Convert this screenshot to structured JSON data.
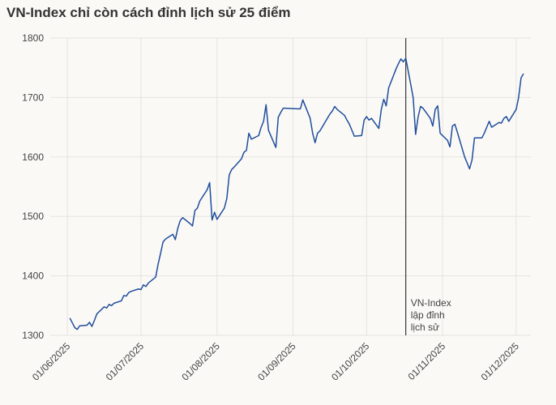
{
  "chart_data": {
    "type": "line",
    "title": "VN-Index chỉ còn cách đỉnh lịch sử 25 điểm",
    "x": [
      "2025-06-02",
      "2025-06-04",
      "2025-06-05",
      "2025-06-06",
      "2025-06-09",
      "2025-06-10",
      "2025-06-11",
      "2025-06-12",
      "2025-06-13",
      "2025-06-16",
      "2025-06-17",
      "2025-06-18",
      "2025-06-19",
      "2025-06-20",
      "2025-06-23",
      "2025-06-24",
      "2025-06-25",
      "2025-06-26",
      "2025-06-27",
      "2025-06-30",
      "2025-07-01",
      "2025-07-02",
      "2025-07-03",
      "2025-07-04",
      "2025-07-07",
      "2025-07-08",
      "2025-07-09",
      "2025-07-10",
      "2025-07-11",
      "2025-07-14",
      "2025-07-15",
      "2025-07-16",
      "2025-07-17",
      "2025-07-18",
      "2025-07-21",
      "2025-07-22",
      "2025-07-23",
      "2025-07-24",
      "2025-07-25",
      "2025-07-28",
      "2025-07-29",
      "2025-07-30",
      "2025-07-31",
      "2025-08-01",
      "2025-08-04",
      "2025-08-05",
      "2025-08-06",
      "2025-08-07",
      "2025-08-08",
      "2025-08-11",
      "2025-08-12",
      "2025-08-13",
      "2025-08-14",
      "2025-08-15",
      "2025-08-18",
      "2025-08-19",
      "2025-08-20",
      "2025-08-21",
      "2025-08-22",
      "2025-08-25",
      "2025-08-26",
      "2025-08-27",
      "2025-08-28",
      "2025-08-29",
      "2025-09-03",
      "2025-09-04",
      "2025-09-05",
      "2025-09-08",
      "2025-09-09",
      "2025-09-10",
      "2025-09-11",
      "2025-09-12",
      "2025-09-15",
      "2025-09-16",
      "2025-09-17",
      "2025-09-18",
      "2025-09-19",
      "2025-09-22",
      "2025-09-23",
      "2025-09-24",
      "2025-09-25",
      "2025-09-26",
      "2025-09-29",
      "2025-09-30",
      "2025-10-01",
      "2025-10-02",
      "2025-10-03",
      "2025-10-06",
      "2025-10-07",
      "2025-10-08",
      "2025-10-09",
      "2025-10-10",
      "2025-10-13",
      "2025-10-14",
      "2025-10-15",
      "2025-10-16",
      "2025-10-17",
      "2025-10-20",
      "2025-10-21",
      "2025-10-22",
      "2025-10-23",
      "2025-10-24",
      "2025-10-27",
      "2025-10-28",
      "2025-10-29",
      "2025-10-30",
      "2025-10-31",
      "2025-11-03",
      "2025-11-04",
      "2025-11-05",
      "2025-11-06",
      "2025-11-07",
      "2025-11-10",
      "2025-11-11",
      "2025-11-12",
      "2025-11-13",
      "2025-11-14",
      "2025-11-17",
      "2025-11-18",
      "2025-11-19",
      "2025-11-20",
      "2025-11-21",
      "2025-11-24",
      "2025-11-25",
      "2025-11-26",
      "2025-11-27",
      "2025-11-28",
      "2025-12-01",
      "2025-12-02",
      "2025-12-03",
      "2025-12-04"
    ],
    "series": [
      {
        "name": "VN-Index",
        "color": "#1f4e9c",
        "values": [
          1329,
          1313,
          1310,
          1316,
          1317,
          1322,
          1315,
          1325,
          1336,
          1348,
          1346,
          1352,
          1350,
          1354,
          1358,
          1367,
          1366,
          1372,
          1374,
          1378,
          1377,
          1385,
          1382,
          1388,
          1398,
          1420,
          1438,
          1457,
          1462,
          1470,
          1461,
          1480,
          1493,
          1498,
          1488,
          1484,
          1510,
          1514,
          1526,
          1545,
          1557,
          1494,
          1507,
          1495,
          1514,
          1530,
          1570,
          1579,
          1583,
          1597,
          1608,
          1611,
          1640,
          1630,
          1636,
          1650,
          1660,
          1688,
          1645,
          1616,
          1667,
          1675,
          1682,
          1682,
          1681,
          1681,
          1696,
          1665,
          1640,
          1624,
          1640,
          1644,
          1665,
          1672,
          1677,
          1685,
          1680,
          1670,
          1662,
          1655,
          1645,
          1635,
          1636,
          1662,
          1668,
          1662,
          1665,
          1648,
          1680,
          1697,
          1686,
          1716,
          1748,
          1757,
          1765,
          1760,
          1766,
          1700,
          1638,
          1667,
          1685,
          1682,
          1665,
          1652,
          1680,
          1686,
          1640,
          1628,
          1617,
          1652,
          1655,
          1642,
          1600,
          1590,
          1580,
          1595,
          1632,
          1632,
          1640,
          1650,
          1660,
          1650,
          1658,
          1657,
          1665,
          1668,
          1660,
          1680,
          1700,
          1733,
          1740
        ]
      }
    ],
    "xlim": [
      "2025-05-25",
      "2025-12-07"
    ],
    "xticks": [
      {
        "value": "2025-06-01",
        "label": "01/06/2025"
      },
      {
        "value": "2025-07-01",
        "label": "01/07/2025"
      },
      {
        "value": "2025-08-01",
        "label": "01/08/2025"
      },
      {
        "value": "2025-09-01",
        "label": "01/09/2025"
      },
      {
        "value": "2025-10-01",
        "label": "01/10/2025"
      },
      {
        "value": "2025-11-01",
        "label": "01/11/2025"
      },
      {
        "value": "2025-12-01",
        "label": "01/12/2025"
      }
    ],
    "ylim": [
      1300,
      1800
    ],
    "yticks": [
      1300,
      1400,
      1500,
      1600,
      1700,
      1800
    ],
    "grid": true,
    "annotation": {
      "x": "2025-10-17",
      "text": [
        "VN-Index",
        "lập đỉnh",
        "lịch sử"
      ]
    }
  }
}
